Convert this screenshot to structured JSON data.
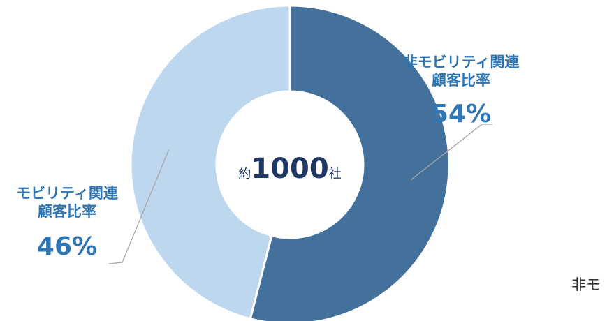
{
  "chart_data": {
    "type": "pie",
    "variant": "donut",
    "slices": [
      {
        "label_line1": "非モビリティ関連",
        "label_line2": "顧客比率",
        "value": 54,
        "value_label": "54%",
        "color": "#44719c"
      },
      {
        "label_line1": "モビリティ関連",
        "label_line2": "顧客比率",
        "value": 46,
        "value_label": "46%",
        "color": "#bdd7ee"
      }
    ],
    "center": {
      "prefix": "約",
      "number": "1000",
      "suffix": "社"
    },
    "label_color": "#2e75b6",
    "leader_color": "#a6a6a6",
    "start_angle_deg": 0,
    "direction": "clockwise"
  },
  "edge_text": "非モ"
}
